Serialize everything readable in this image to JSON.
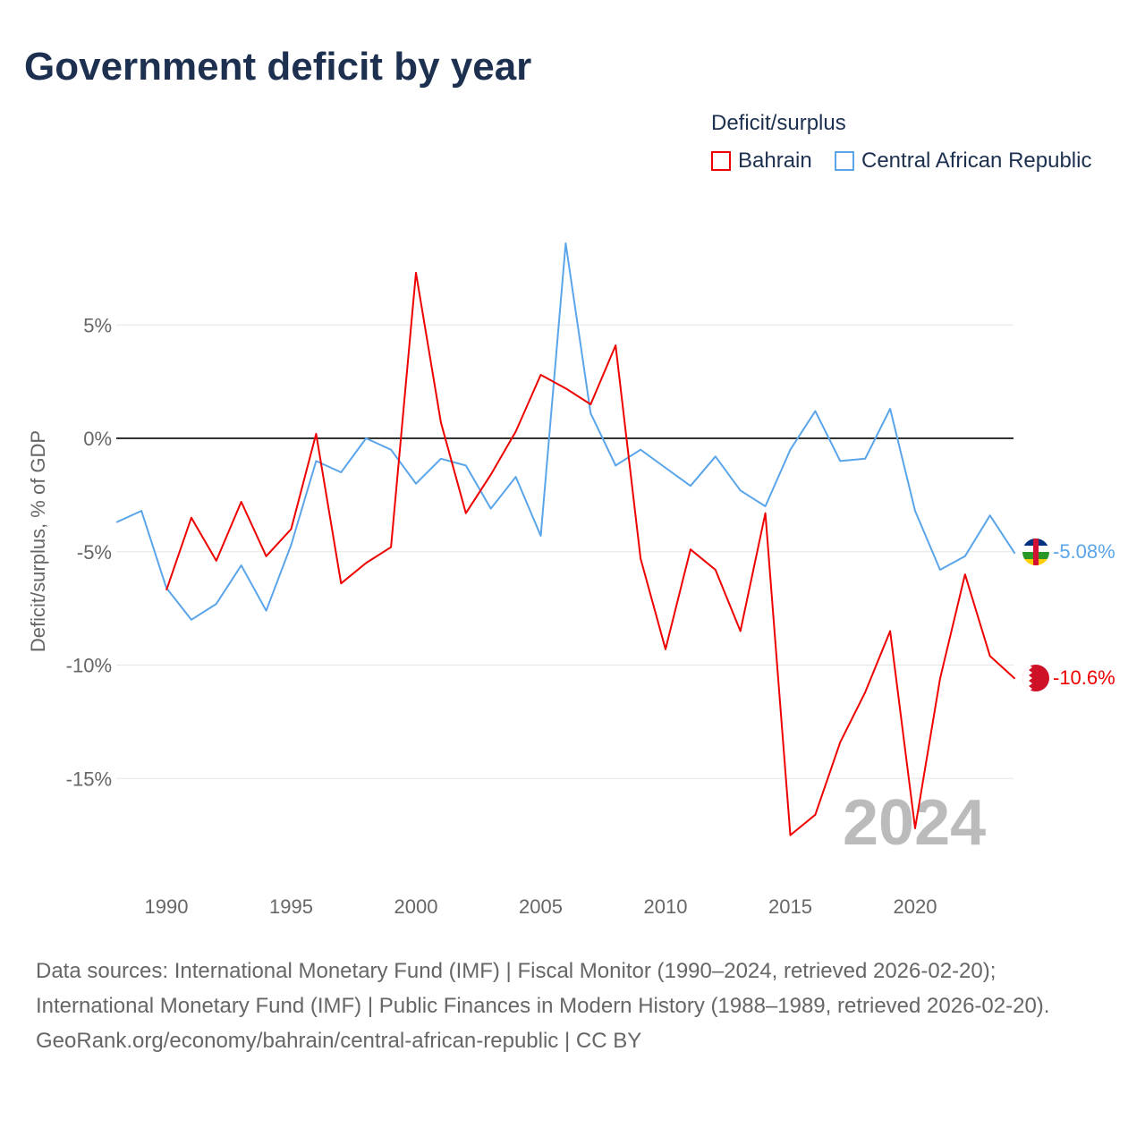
{
  "title": "Government deficit by year",
  "legend": {
    "title": "Deficit/surplus",
    "items": [
      "Bahrain",
      "Central African Republic"
    ]
  },
  "footer": {
    "sources": "Data sources: International Monetary Fund (IMF) | Fiscal Monitor (1990–2024, retrieved 2026-02-20); International Monetary Fund (IMF) | Public Finances in Modern History (1988–1989, retrieved 2026-02-20).",
    "credit": "GeoRank.org/economy/bahrain/central-african-republic | CC BY"
  },
  "chart_data": {
    "type": "line",
    "title": "Government deficit by year",
    "xlabel": "",
    "ylabel": "Deficit/surplus, % of GDP",
    "xlim": [
      1988,
      2024
    ],
    "ylim": [
      -19.5,
      9.5
    ],
    "x_ticks": [
      1990,
      1995,
      2000,
      2005,
      2010,
      2015,
      2020
    ],
    "y_ticks": [
      5,
      0,
      -5,
      -10,
      -15
    ],
    "y_tick_labels": [
      "5%",
      "0%",
      "-5%",
      "-10%",
      "-15%"
    ],
    "year_watermark": "2024",
    "series": [
      {
        "name": "Bahrain",
        "color": "#ee0000",
        "start_year": 1990,
        "end_label": "-10.6%",
        "values": [
          -6.7,
          -3.5,
          -5.4,
          -2.8,
          -5.2,
          -4.0,
          0.2,
          -6.4,
          -5.5,
          -4.8,
          7.3,
          0.7,
          -3.3,
          -1.6,
          0.3,
          2.8,
          2.2,
          1.5,
          4.1,
          -5.3,
          -9.3,
          -4.9,
          -5.8,
          -8.5,
          -3.3,
          -17.5,
          -16.6,
          -13.4,
          -11.2,
          -8.5,
          -17.2,
          -10.6,
          -6.0,
          -9.6,
          -10.6
        ]
      },
      {
        "name": "Central African Republic",
        "color": "#5aa5ea",
        "start_year": 1988,
        "end_label": "-5.08%",
        "values": [
          -3.7,
          -3.2,
          -6.6,
          -8.0,
          -7.3,
          -5.6,
          -7.6,
          -4.7,
          -1.0,
          -1.5,
          0.0,
          -0.5,
          -2.0,
          -0.9,
          -1.2,
          -3.1,
          -1.7,
          -4.3,
          8.6,
          1.1,
          -1.2,
          -0.5,
          -1.3,
          -2.1,
          -0.8,
          -2.3,
          -3.0,
          -0.5,
          1.2,
          -1.0,
          -0.9,
          1.3,
          -3.2,
          -5.8,
          -5.2,
          -3.4,
          -5.08
        ]
      }
    ]
  }
}
